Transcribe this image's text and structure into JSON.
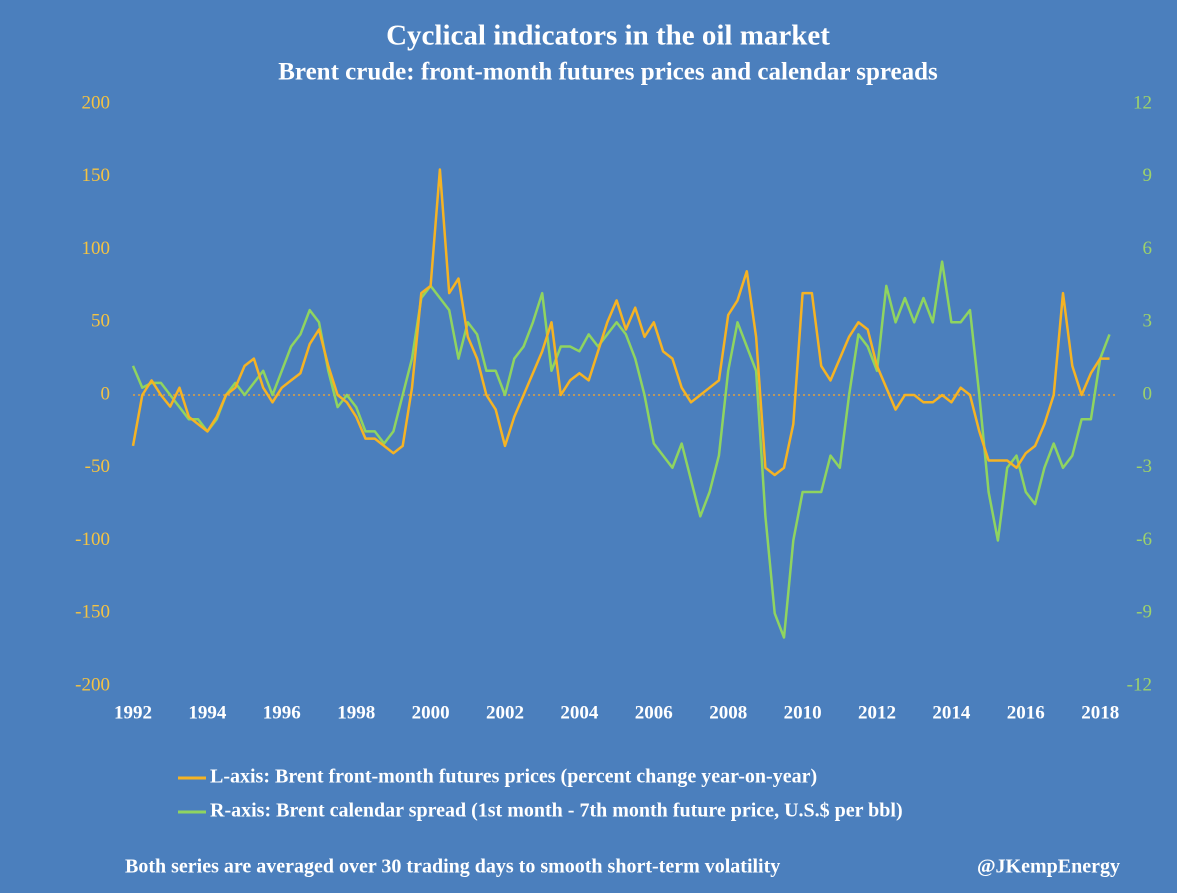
{
  "chart_data": {
    "type": "line",
    "title": "Cyclical indicators in the oil market",
    "subtitle": "Brent crude: front-month futures prices and calendar spreads",
    "note": "Both series are averaged over 30 trading days to smooth short-term volatility",
    "credit": "@JKempEnergy",
    "x": [
      1992,
      1992.25,
      1992.5,
      1992.75,
      1993,
      1993.25,
      1993.5,
      1993.75,
      1994,
      1994.25,
      1994.5,
      1994.75,
      1995,
      1995.25,
      1995.5,
      1995.75,
      1996,
      1996.25,
      1996.5,
      1996.75,
      1997,
      1997.25,
      1997.5,
      1997.75,
      1998,
      1998.25,
      1998.5,
      1998.75,
      1999,
      1999.25,
      1999.5,
      1999.75,
      2000,
      2000.25,
      2000.5,
      2000.75,
      2001,
      2001.25,
      2001.5,
      2001.75,
      2002,
      2002.25,
      2002.5,
      2002.75,
      2003,
      2003.25,
      2003.5,
      2003.75,
      2004,
      2004.25,
      2004.5,
      2004.75,
      2005,
      2005.25,
      2005.5,
      2005.75,
      2006,
      2006.25,
      2006.5,
      2006.75,
      2007,
      2007.25,
      2007.5,
      2007.75,
      2008,
      2008.25,
      2008.5,
      2008.75,
      2009,
      2009.25,
      2009.5,
      2009.75,
      2010,
      2010.25,
      2010.5,
      2010.75,
      2011,
      2011.25,
      2011.5,
      2011.75,
      2012,
      2012.25,
      2012.5,
      2012.75,
      2013,
      2013.25,
      2013.5,
      2013.75,
      2014,
      2014.25,
      2014.5,
      2014.75,
      2015,
      2015.25,
      2015.5,
      2015.75,
      2016,
      2016.25,
      2016.5,
      2016.75,
      2017,
      2017.25,
      2017.5,
      2017.75,
      2018,
      2018.25
    ],
    "series": [
      {
        "name": "L-axis: Brent front-month futures prices (percent change year-on-year)",
        "color": "#f5b324",
        "axis": "y",
        "values": [
          -35,
          0,
          10,
          0,
          -8,
          5,
          -15,
          -20,
          -25,
          -15,
          0,
          5,
          20,
          25,
          5,
          -5,
          5,
          10,
          15,
          35,
          45,
          20,
          0,
          -5,
          -15,
          -30,
          -30,
          -35,
          -40,
          -35,
          5,
          70,
          75,
          155,
          70,
          80,
          40,
          25,
          0,
          -10,
          -35,
          -15,
          0,
          15,
          30,
          50,
          0,
          10,
          15,
          10,
          30,
          50,
          65,
          45,
          60,
          40,
          50,
          30,
          25,
          5,
          -5,
          0,
          5,
          10,
          55,
          65,
          85,
          40,
          -50,
          -55,
          -50,
          -20,
          70,
          70,
          20,
          10,
          25,
          40,
          50,
          45,
          20,
          5,
          -10,
          0,
          0,
          -5,
          -5,
          0,
          -5,
          5,
          0,
          -25,
          -45,
          -45,
          -45,
          -50,
          -40,
          -35,
          -20,
          0,
          70,
          20,
          0,
          15,
          25,
          25
        ]
      },
      {
        "name": "R-axis: Brent calendar spread (1st month - 7th month future price, U.S.$ per bbl)",
        "color": "#8fd460",
        "axis": "y2",
        "values": [
          1.2,
          0.3,
          0.5,
          0.5,
          0,
          -0.5,
          -1,
          -1,
          -1.5,
          -1,
          0,
          0.5,
          0,
          0.5,
          1,
          0,
          1,
          2,
          2.5,
          3.5,
          3,
          1,
          -0.5,
          0,
          -0.5,
          -1.5,
          -1.5,
          -2,
          -1.5,
          0,
          1.5,
          4,
          4.5,
          4,
          3.5,
          1.5,
          3,
          2.5,
          1,
          1,
          0,
          1.5,
          2,
          3,
          4.2,
          1,
          2,
          2,
          1.8,
          2.5,
          2,
          2.5,
          3,
          2.5,
          1.5,
          0,
          -2,
          -2.5,
          -3,
          -2,
          -3.5,
          -5,
          -4,
          -2.5,
          1,
          3,
          2,
          1,
          -5,
          -9,
          -10,
          -6,
          -4,
          -4,
          -4,
          -2.5,
          -3,
          0,
          2.5,
          2,
          1,
          4.5,
          3,
          4,
          3,
          4,
          3,
          5.5,
          3,
          3,
          3.5,
          0,
          -4,
          -6,
          -3,
          -2.5,
          -4,
          -4.5,
          -3,
          -2,
          -3,
          -2.5,
          -1,
          -1,
          1.5,
          2.5
        ]
      }
    ],
    "xlim": [
      1992,
      2018.4
    ],
    "xticks": [
      1992,
      1994,
      1996,
      1998,
      2000,
      2002,
      2004,
      2006,
      2008,
      2010,
      2012,
      2014,
      2016,
      2018
    ],
    "ylim": [
      -200,
      200
    ],
    "yticks": [
      -200,
      -150,
      -100,
      -50,
      0,
      50,
      100,
      150,
      200
    ],
    "y2lim": [
      -12,
      12
    ],
    "y2ticks": [
      -12,
      -9,
      -6,
      -3,
      0,
      3,
      6,
      9,
      12
    ],
    "legend": "bottom-left"
  }
}
